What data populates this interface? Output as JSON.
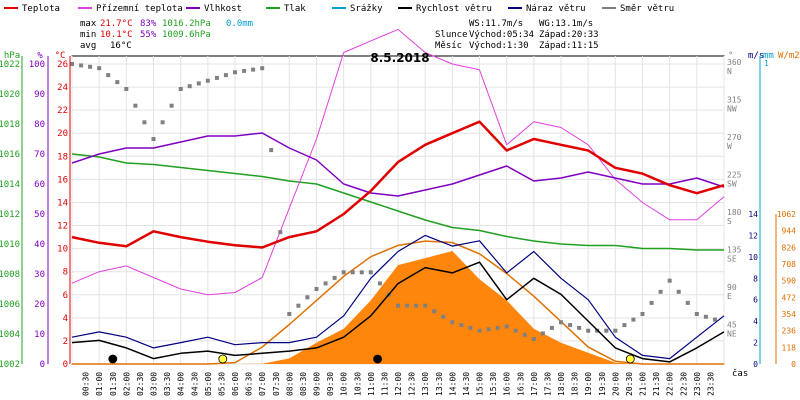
{
  "chart_data": {
    "type": "line",
    "title": "8.5.2018",
    "legend": [
      {
        "name": "Teplota",
        "color": "#e00000"
      },
      {
        "name": "Přízemní teplota",
        "color": "#e040e0"
      },
      {
        "name": "Vlhkost",
        "color": "#8000c0"
      },
      {
        "name": "Tlak",
        "color": "#20a020"
      },
      {
        "name": "Srážky",
        "color": "#00a0d0"
      },
      {
        "name": "Rychlost větru",
        "color": "#000000"
      },
      {
        "name": "Náraz větru",
        "color": "#000080"
      },
      {
        "name": "Směr větru",
        "color": "#808080"
      }
    ],
    "stats": {
      "max_label": "max",
      "max_temp": "21.7°C",
      "max_hum": "83%",
      "max_press": "1016.2hPa",
      "max_rain": "0.0mm",
      "min_label": "min",
      "min_temp": "10.1°C",
      "min_hum": "55%",
      "min_press": "1009.6hPa",
      "avg_label": "avg",
      "avg_temp": "16°C"
    },
    "wind_stats": {
      "ws": "WS:11.7m/s",
      "wg": "WG:13.1m/s"
    },
    "sun": {
      "label": "Slunce",
      "rise": "Východ:05:34",
      "set": "Západ:20:33"
    },
    "moon": {
      "label": "Měsíc",
      "rise": "Východ:1:30",
      "set": "Západ:11:15"
    },
    "axis_units": {
      "hpa": "hPa",
      "pct": "%",
      "degc": "°C",
      "deg": "°",
      "ms": "m/s",
      "mm": "mm",
      "wm2": "W/m2",
      "time": "čas"
    },
    "hpa_ticks": [
      "1022",
      "1020",
      "1018",
      "1016",
      "1014",
      "1012",
      "1010",
      "1008",
      "1006",
      "1004",
      "1002"
    ],
    "pct_ticks": [
      "100",
      "90",
      "80",
      "70",
      "60",
      "50",
      "40",
      "30",
      "20",
      "10",
      "0"
    ],
    "temp_ticks": [
      "26",
      "24",
      "22",
      "20",
      "18",
      "16",
      "14",
      "12",
      "10",
      "8",
      "6",
      "4",
      "2",
      "0"
    ],
    "dir_ticks": [
      {
        "deg": "360",
        "lbl": "N"
      },
      {
        "deg": "315",
        "lbl": "NW"
      },
      {
        "deg": "270",
        "lbl": "W"
      },
      {
        "deg": "225",
        "lbl": "SW"
      },
      {
        "deg": "180",
        "lbl": "S"
      },
      {
        "deg": "135",
        "lbl": "SE"
      },
      {
        "deg": "90",
        "lbl": "E"
      },
      {
        "deg": "45",
        "lbl": "NE"
      }
    ],
    "ms_ticks": [
      "14",
      "12",
      "10",
      "8",
      "6",
      "4",
      "2",
      "0"
    ],
    "rain_top": "1",
    "rad_ticks": [
      "1062",
      "944",
      "826",
      "708",
      "590",
      "472",
      "354",
      "236",
      "118",
      "0"
    ],
    "time_ticks": [
      "00:30",
      "01:00",
      "01:30",
      "02:00",
      "02:30",
      "03:00",
      "03:30",
      "04:00",
      "04:30",
      "05:00",
      "05:30",
      "06:00",
      "06:30",
      "07:00",
      "07:30",
      "08:00",
      "08:30",
      "09:00",
      "09:30",
      "10:00",
      "10:30",
      "11:00",
      "11:30",
      "12:00",
      "12:30",
      "13:00",
      "13:30",
      "14:00",
      "14:30",
      "15:00",
      "15:30",
      "16:00",
      "16:30",
      "17:00",
      "17:30",
      "18:00",
      "18:30",
      "19:00",
      "19:30",
      "20:00",
      "20:30",
      "21:00",
      "21:30",
      "22:00",
      "22:30",
      "23:00",
      "23:30"
    ],
    "x_hours": [
      0,
      1,
      2,
      3,
      4,
      5,
      6,
      7,
      8,
      9,
      10,
      11,
      12,
      13,
      14,
      15,
      16,
      17,
      18,
      19,
      20,
      21,
      22,
      23,
      24
    ],
    "series": [
      {
        "name": "Teplota",
        "unit": "°C",
        "values": [
          11.0,
          10.5,
          10.2,
          11.5,
          11.0,
          10.6,
          10.3,
          10.1,
          11.0,
          11.5,
          13.0,
          15.0,
          17.5,
          19.0,
          20.0,
          21.0,
          18.5,
          19.5,
          19.0,
          18.5,
          17.0,
          16.5,
          15.5,
          14.8,
          15.5
        ]
      },
      {
        "name": "Přízemní teplota",
        "unit": "°C",
        "values": [
          7.0,
          8.0,
          8.5,
          7.5,
          6.5,
          6.0,
          6.2,
          7.5,
          13.5,
          19.5,
          27.0,
          28.0,
          29.0,
          27.0,
          26.0,
          25.5,
          19.0,
          21.0,
          20.5,
          19.0,
          16.0,
          14.0,
          12.5,
          12.5,
          14.5
        ]
      },
      {
        "name": "Vlhkost",
        "unit": "%",
        "values": [
          67,
          70,
          72,
          72,
          74,
          76,
          76,
          77,
          72,
          68,
          60,
          57,
          56,
          58,
          60,
          63,
          66,
          61,
          62,
          64,
          62,
          60,
          60,
          62,
          59
        ]
      },
      {
        "name": "Tlak",
        "unit": "hPa",
        "values": [
          1016.0,
          1015.8,
          1015.4,
          1015.3,
          1015.1,
          1014.9,
          1014.7,
          1014.5,
          1014.2,
          1014.0,
          1013.4,
          1012.8,
          1012.2,
          1011.6,
          1011.1,
          1010.9,
          1010.5,
          1010.2,
          1010.0,
          1009.9,
          1009.9,
          1009.7,
          1009.7,
          1009.6,
          1009.6
        ]
      },
      {
        "name": "Rychlost větru",
        "unit": "m/s",
        "values": [
          2.0,
          2.2,
          1.5,
          0.5,
          1.0,
          1.2,
          0.8,
          1.0,
          1.2,
          1.5,
          2.5,
          4.5,
          7.5,
          9.0,
          8.5,
          9.5,
          6.0,
          8.0,
          6.5,
          4.0,
          1.5,
          0.5,
          0.2,
          1.5,
          3.0
        ]
      },
      {
        "name": "Náraz větru",
        "unit": "m/s",
        "values": [
          2.5,
          3.0,
          2.5,
          1.5,
          2.0,
          2.5,
          1.8,
          2.0,
          2.0,
          2.5,
          4.5,
          8.0,
          10.5,
          12.0,
          11.0,
          11.5,
          8.5,
          10.5,
          8.0,
          6.0,
          2.5,
          0.8,
          0.5,
          2.5,
          4.5
        ]
      },
      {
        "name": "Směr větru",
        "unit": "°",
        "values": [
          360,
          355,
          330,
          270,
          330,
          340,
          350,
          355,
          60,
          90,
          110,
          110,
          70,
          70,
          50,
          40,
          45,
          30,
          50,
          40,
          40,
          60,
          100,
          60,
          50
        ]
      }
    ],
    "radiation": {
      "name": "Sluneční záření",
      "unit": "W/m2",
      "values": [
        0,
        0,
        0,
        0,
        0,
        0,
        0,
        2,
        40,
        150,
        250,
        450,
        700,
        750,
        800,
        600,
        450,
        250,
        150,
        80,
        10,
        0,
        0,
        0,
        0
      ]
    },
    "radiation_max": {
      "unit": "W/m2",
      "values": [
        0,
        0,
        0,
        0,
        0,
        0,
        10,
        120,
        280,
        450,
        620,
        760,
        840,
        870,
        860,
        780,
        640,
        480,
        300,
        120,
        20,
        0,
        0,
        0,
        0
      ]
    },
    "markers": [
      {
        "type": "sunrise",
        "hour": 5.55
      },
      {
        "type": "sunset",
        "hour": 20.55
      },
      {
        "type": "moonrise",
        "hour": 1.5
      },
      {
        "type": "moonset",
        "hour": 11.25
      }
    ]
  }
}
